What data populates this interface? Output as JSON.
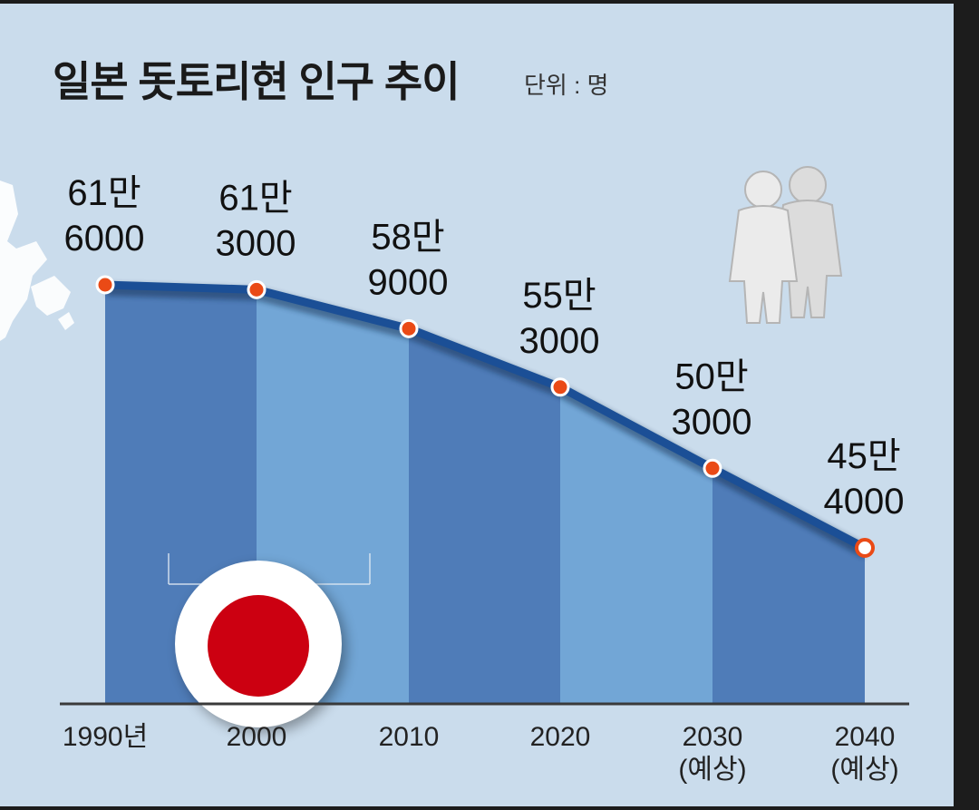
{
  "chart_data": {
    "type": "area",
    "title": "일본 돗토리현 인구 추이",
    "unit": "단위 : 명",
    "categories": [
      "1990년",
      "2000",
      "2010",
      "2020",
      "2030\n(예상)",
      "2040\n(예상)"
    ],
    "values": [
      616000,
      613000,
      589000,
      553000,
      503000,
      454000
    ],
    "value_labels": [
      [
        "61만",
        "6000"
      ],
      [
        "61만",
        "3000"
      ],
      [
        "58만",
        "9000"
      ],
      [
        "55만",
        "3000"
      ],
      [
        "50만",
        "3000"
      ],
      [
        "45만",
        "4000"
      ]
    ],
    "ylim": [
      0,
      616000
    ],
    "xlabel": "",
    "ylabel": "",
    "colors": {
      "bar_dark": "#4f7cb8",
      "bar_light": "#72a6d6",
      "line": "#1b4f96",
      "marker": "#ea4a16",
      "flag_red": "#cc0011"
    }
  },
  "icons": [
    "map-silhouette-icon",
    "people-icon",
    "japan-flag-icon"
  ]
}
